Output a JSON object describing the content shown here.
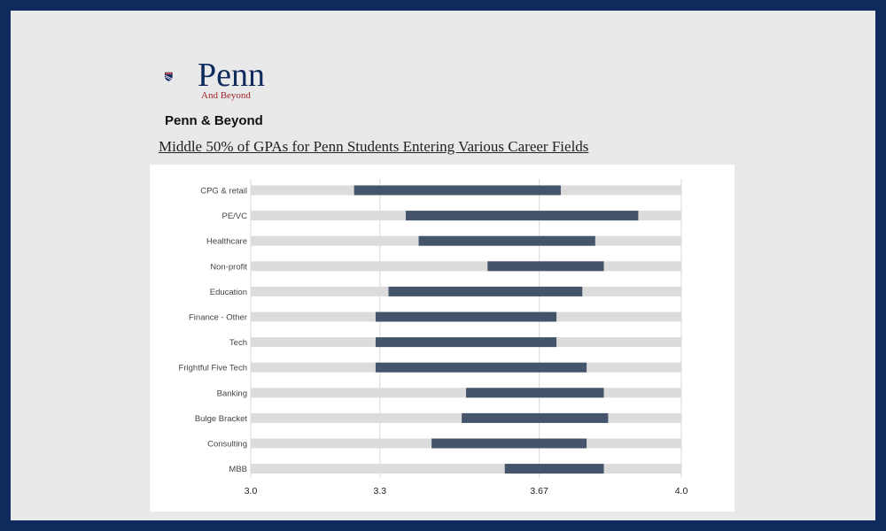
{
  "brand": {
    "wordmark": "Penn",
    "tagline": "And Beyond",
    "heading": "Penn & Beyond"
  },
  "colors": {
    "background": "#0f2a5c",
    "panel": "#e9e9ea",
    "track": "#dcdcdc",
    "bar": "#44546a"
  },
  "chart_data": {
    "type": "bar",
    "orientation": "horizontal-range",
    "title": "Middle 50% of GPAs for Penn Students Entering Various Career Fields",
    "xlim": [
      3.0,
      4.0
    ],
    "x_ticks": [
      3.0,
      3.3,
      3.67,
      4.0
    ],
    "x_tick_labels": [
      "3.0",
      "3.3",
      "3.67",
      "4.0"
    ],
    "grid": true,
    "categories": [
      "CPG & retail",
      "PE/VC",
      "Healthcare",
      "Non-profit",
      "Education",
      "Finance - Other",
      "Tech",
      "Frightful Five Tech",
      "Banking",
      "Bulge Bracket",
      "Consulting",
      "MBB"
    ],
    "low": [
      3.24,
      3.36,
      3.39,
      3.55,
      3.32,
      3.29,
      3.29,
      3.29,
      3.5,
      3.49,
      3.42,
      3.59
    ],
    "high": [
      3.72,
      3.9,
      3.8,
      3.82,
      3.77,
      3.71,
      3.71,
      3.78,
      3.82,
      3.83,
      3.78,
      3.82
    ]
  }
}
